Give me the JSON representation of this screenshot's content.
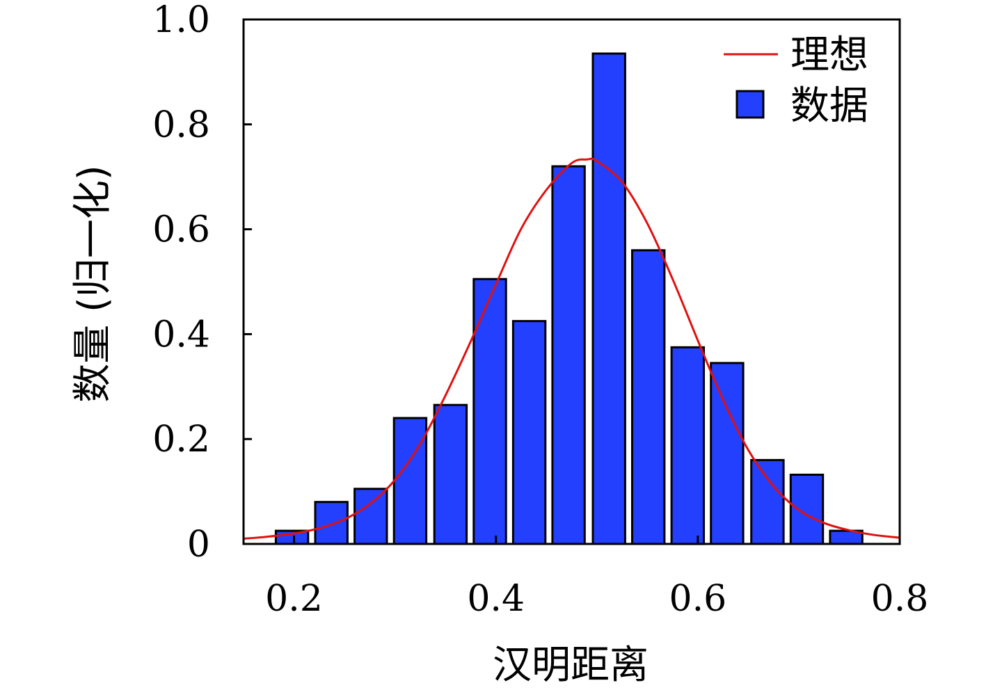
{
  "chart_data": {
    "type": "bar",
    "title": "",
    "xlabel": "汉明距离",
    "ylabel": "数量 (归一化)",
    "xlim": [
      0.15,
      0.8
    ],
    "ylim": [
      0,
      1.0
    ],
    "xticks": [
      {
        "value": 0.2,
        "label": "0.2"
      },
      {
        "value": 0.4,
        "label": "0.4"
      },
      {
        "value": 0.6,
        "label": "0.6"
      },
      {
        "value": 0.8,
        "label": "0.8"
      }
    ],
    "yticks": [
      {
        "value": 0,
        "label": "0"
      },
      {
        "value": 0.2,
        "label": "0.2"
      },
      {
        "value": 0.4,
        "label": "0.4"
      },
      {
        "value": 0.6,
        "label": "0.6"
      },
      {
        "value": 0.8,
        "label": "0.8"
      },
      {
        "value": 1.0,
        "label": "1.0"
      }
    ],
    "grid": false,
    "legend": {
      "position": "top-right"
    },
    "series": [
      {
        "name": "数据",
        "kind": "bar",
        "color": "#2340ff",
        "bar_width": 0.032,
        "x": [
          0.198,
          0.237,
          0.276,
          0.315,
          0.355,
          0.394,
          0.433,
          0.472,
          0.512,
          0.551,
          0.59,
          0.629,
          0.669,
          0.708,
          0.747
        ],
        "values": [
          0.025,
          0.08,
          0.105,
          0.24,
          0.265,
          0.505,
          0.425,
          0.72,
          0.935,
          0.56,
          0.375,
          0.345,
          0.16,
          0.132,
          0.025
        ]
      },
      {
        "name": "理想",
        "kind": "line",
        "color": "#e01010",
        "x": [
          0.15,
          0.175,
          0.2,
          0.225,
          0.25,
          0.275,
          0.3,
          0.325,
          0.35,
          0.375,
          0.4,
          0.425,
          0.45,
          0.475,
          0.49,
          0.5,
          0.525,
          0.55,
          0.575,
          0.6,
          0.625,
          0.65,
          0.675,
          0.7,
          0.725,
          0.75,
          0.775,
          0.8
        ],
        "values": [
          0.01,
          0.014,
          0.02,
          0.03,
          0.047,
          0.076,
          0.122,
          0.191,
          0.283,
          0.386,
          0.495,
          0.601,
          0.675,
          0.726,
          0.733,
          0.73,
          0.69,
          0.611,
          0.505,
          0.388,
          0.275,
          0.179,
          0.11,
          0.065,
          0.04,
          0.026,
          0.017,
          0.012
        ]
      }
    ]
  }
}
